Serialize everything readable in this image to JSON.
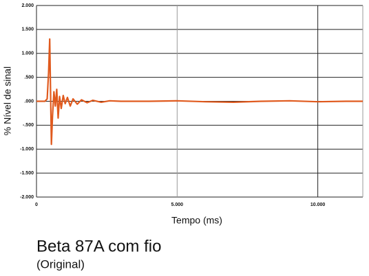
{
  "chart_data": {
    "type": "line",
    "title": "Beta 87A com fio",
    "subtitle": "(Original)",
    "x_label": "Tempo (ms)",
    "y_label": "% Nível de sinal",
    "x": [
      0,
      0.3,
      0.38,
      0.43,
      0.47,
      0.5,
      0.53,
      0.57,
      0.62,
      0.67,
      0.72,
      0.77,
      0.82,
      0.88,
      0.95,
      1.02,
      1.1,
      1.2,
      1.3,
      1.45,
      1.6,
      1.8,
      2.0,
      2.3,
      2.6,
      3,
      4,
      5,
      6,
      7,
      8,
      9,
      10,
      11,
      11.6
    ],
    "series": [
      {
        "name": "Beta 87A com fio",
        "color": "#e05a1e",
        "values": [
          0,
          0,
          0.05,
          0.6,
          1.3,
          0.2,
          -0.9,
          -0.3,
          0.2,
          -0.1,
          0.25,
          -0.35,
          0.1,
          -0.15,
          0.12,
          -0.05,
          0.08,
          -0.1,
          0.05,
          -0.06,
          0.03,
          -0.03,
          0.02,
          -0.02,
          0.01,
          0,
          0,
          0.01,
          -0.01,
          -0.02,
          0,
          0.01,
          -0.01,
          0,
          0
        ]
      }
    ],
    "xlim": [
      0,
      11.6
    ],
    "ylim": [
      -2,
      2
    ],
    "xticks": [
      0,
      {
        "value": 5,
        "label": "5.000"
      },
      {
        "value": 10,
        "label": "10.000"
      }
    ],
    "yticks": [
      {
        "value": 2,
        "label": "2.000"
      },
      {
        "value": 1.5,
        "label": "1.500"
      },
      {
        "value": 1,
        "label": "1.000"
      },
      {
        "value": 0.5,
        "label": ".500"
      },
      {
        "value": 0,
        "label": ".000"
      },
      {
        "value": -0.5,
        "label": "-.500"
      },
      {
        "value": -1,
        "label": "-1.000"
      },
      {
        "value": -1.5,
        "label": "-1.500"
      },
      {
        "value": -2,
        "label": "-2.000"
      }
    ],
    "grid": true
  }
}
